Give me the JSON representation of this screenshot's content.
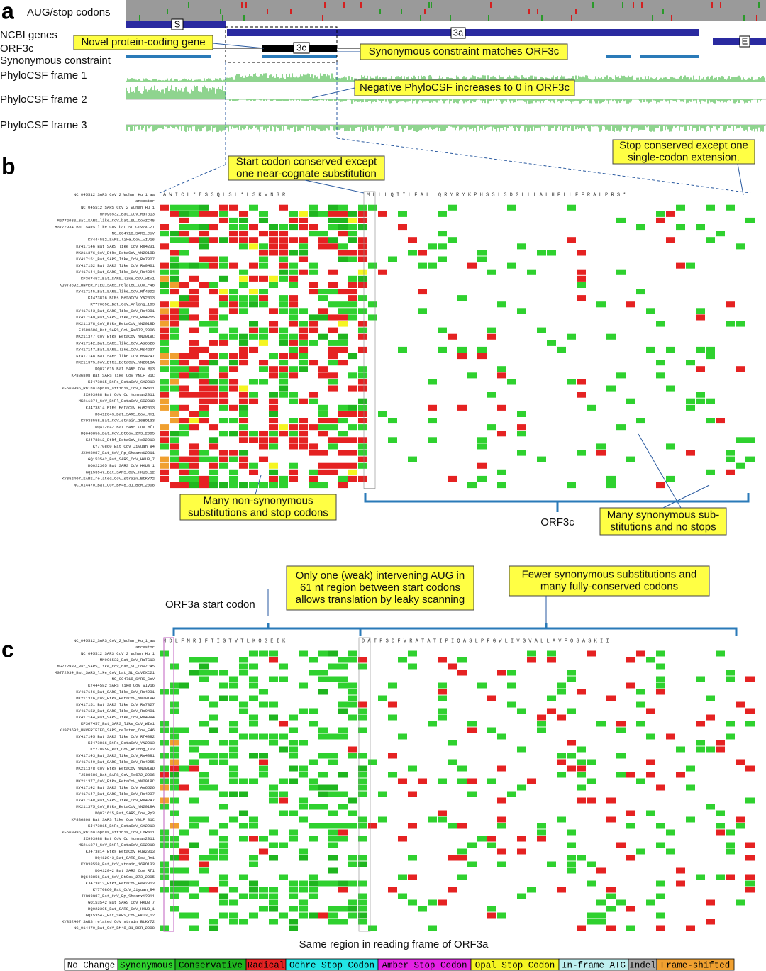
{
  "panel_labels": [
    "a",
    "b",
    "c"
  ],
  "tracks": [
    "AUG/stop codons",
    "NCBI genes",
    "ORF3c",
    "Synonymous constraint",
    "PhyloCSF frame 1",
    "PhyloCSF frame 2",
    "PhyloCSF frame 3"
  ],
  "gene_labels": [
    "S",
    "3a",
    "3c",
    "E"
  ],
  "callouts": [
    [
      "Novel protein-coding gene"
    ],
    [
      "Synonymous constraint matches ORF3c"
    ],
    [
      "Negative PhyloCSF  increases to 0 in ORF3c"
    ],
    [
      "Start codon conserved except",
      "one near-cognate substitution"
    ],
    [
      "Stop conserved except one",
      "single-codon extension."
    ],
    [
      "Many non-synonymous",
      "substitutions and stop codons"
    ],
    [
      "Many synonymous sub-",
      "stitutions and no stops"
    ],
    [
      "Only one (weak) intervening AUG in",
      "61 nt region between start codons",
      "allows translation by leaky scanning"
    ],
    [
      "Fewer synonymous substitutions and",
      "many fully-conserved codons"
    ]
  ],
  "notes": [
    "ORF3c",
    "ORF3a start codon",
    "Same region in reading frame of ORF3a"
  ],
  "sequences": [
    "NC_045512_SARS_CoV_2_Wuhan_Hu_1_aa",
    "ancestor",
    "NC_045512_SARS_CoV_2_Wuhan_Hu_1",
    "MN996532_Bat_CoV_RaTG13",
    "MG772933_Bat_SARS_like_CoV_bat_SL_CoVZC45",
    "MG772934_Bat_SARS_like_CoV_bat_SL_CoVZXC21",
    "NC_004718_SARS_CoV",
    "KY444582_SARS_like_CoV_WIV16",
    "KY417146_Bat_SARS_like_CoV_Rs4231",
    "MK211376_CoV_BtRs_BetaCoV_YN2018B",
    "KY417151_Bat_SARS_like_CoV_Rs7327",
    "KY417152_Bat_SARS_like_CoV_Rs9401",
    "KY417144_Bat_SARS_like_CoV_Rs4084",
    "KF367457_Bat_SARS_like_CoV_WIV1",
    "KU973692_UNVERIFIED_SARS_related_CoV_F46",
    "KY417145_Bat_SARS_like_CoV_Rf4092",
    "KJ473816_BtRs_BetaCoV_YN2013",
    "KY770858_Bat_CoV_Anlong_103",
    "KY417143_Bat_SARS_like_CoV_Rs4081",
    "KY417149_Bat_SARS_like_CoV_Rs4255",
    "MK211378_CoV_BtRs_BetaCoV_YN2018D",
    "FJ588686_Bat_SARS_CoV_Rs672_2006",
    "MK211377_CoV_BtRs_BetaCoV_YN2018C",
    "KY417142_Bat_SARS_like_CoV_As6526",
    "KY417147_Bat_SARS_like_CoV_Rs4237",
    "KY417148_Bat_SARS_like_CoV_Rs4247",
    "MK211375_CoV_BtRs_BetaCoV_YN2018A",
    "DQ071615_Bat_SARS_CoV_Rp3",
    "KP886808_Bat_SARS_like_CoV_YNLF_31C",
    "KJ473815_BtRs_BetaCoV_GX2013",
    "KF569996_Rhinolophus_affinis_CoV_LYRa11",
    "JX993988_Bat_CoV_Cp_Yunnan2011",
    "MK211374_CoV_BtRl_BetaCoV_SC2018",
    "KJ473814_BtRs_BetaCoV_HuB2013",
    "DQ412043_Bat_SARS_CoV_Rm1",
    "KY938558_Bat_CoV_strain_16BO133",
    "DQ412042_Bat_SARS_CoV_Rf1",
    "DQ648856_Bat_CoV_BtCoV_273_2005",
    "KJ473812_BtRf_BetaCoV_HeB2013",
    "KY770860_Bat_CoV_Jiyuan_84",
    "JX993987_Bat_CoV_Rp_Shaanxi2011",
    "GQ153542_Bat_SARS_CoV_HKU3_7",
    "DQ022305_Bat_SARS_CoV_HKU3_1",
    "GQ153547_Bat_SARS_CoV_HKU3_12",
    "KY352407_SARS_related_CoV_strain_BtKY72",
    "NC_014470_Bat_CoV_BM48_31_BGR_2008"
  ],
  "aa_b": [
    "A W I C L * E S S Q L S L * L S K V N S R",
    "M L L L Q I I L F A L L Q R Y R Y K P H S S L S D G L L L A L H F L L F F R A L P R S *"
  ],
  "aa_c": [
    "M D L F M R I F T I G T V T L K Q G E I K",
    "D A T P S D F V R A T A T I P I Q A S L P F G W L I V G V A L L A V F Q S A S K I I"
  ],
  "legend": [
    {
      "label": "No Change",
      "color": "#ffffff"
    },
    {
      "label": "Synonymous",
      "color": "#2fd12f"
    },
    {
      "label": "Conservative",
      "color": "#1fb51f"
    },
    {
      "label": "Radical",
      "color": "#e52222"
    },
    {
      "label": "Ochre Stop Codon",
      "color": "#22e5e5"
    },
    {
      "label": "Amber Stop Codon",
      "color": "#e522e5"
    },
    {
      "label": "Opal Stop Codon",
      "color": "#f5f522"
    },
    {
      "label": "In-frame ATG",
      "color": "#bff0f0"
    },
    {
      "label": "Indel",
      "color": "#aaaaaa"
    },
    {
      "label": "Frame-shifted",
      "color": "#f0a030"
    }
  ]
}
